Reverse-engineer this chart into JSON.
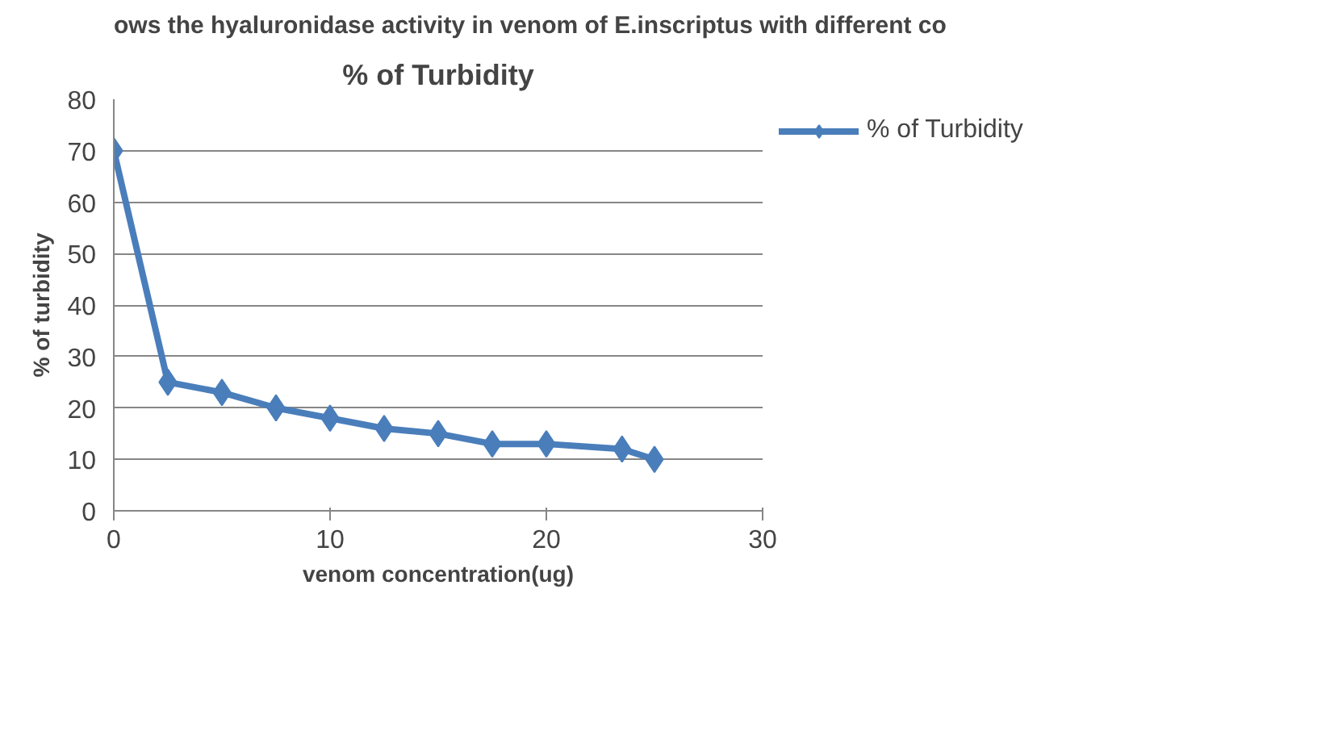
{
  "chart_data": {
    "type": "line",
    "title": "% of Turbidity",
    "xlabel": "venom concentration(ug)",
    "ylabel": "% of turbidity",
    "annotations": [
      "ows the hyaluronidase activity in venom of E.inscriptus with different co"
    ],
    "x": [
      0,
      2.5,
      5,
      7.5,
      10,
      12.5,
      15,
      17.5,
      20,
      23.5,
      25
    ],
    "series": [
      {
        "name": "% of Turbidity",
        "color": "#4a7ebb",
        "values": [
          70,
          25,
          23,
          20,
          18,
          16,
          15,
          13,
          13,
          12,
          10
        ]
      }
    ],
    "xlim": [
      0,
      30
    ],
    "xticks": [
      0,
      10,
      20,
      30
    ],
    "ylim": [
      0,
      80
    ],
    "yticks": [
      0,
      10,
      20,
      30,
      40,
      50,
      60,
      70,
      80
    ],
    "grid": "y",
    "legend": "right",
    "marker": "diamond",
    "line_style": "solid"
  }
}
